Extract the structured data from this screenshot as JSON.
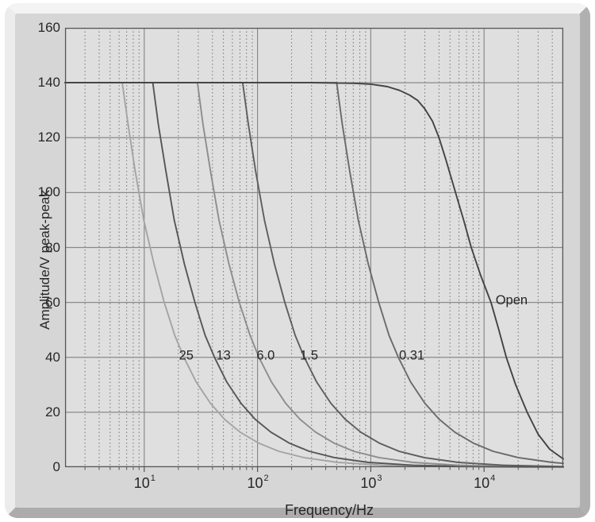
{
  "figure": {
    "panel_color": "#d6d6d6",
    "plot_background": "#dfdfdf",
    "axis_color": "#555555",
    "grid_major_color": "#8a8a8a",
    "grid_minor_color": "#757575",
    "text_color": "#262626"
  },
  "chart_data": {
    "type": "line",
    "title": "",
    "xlabel": "Frequency/Hz",
    "ylabel": "Amplitude/V peak-peak",
    "x_scale": "log",
    "xlim": [
      2,
      50000
    ],
    "ylim": [
      0,
      160
    ],
    "grid": "on: solid gray major lines, dotted dark minor log lines",
    "legend_position": "none (curves labeled inline)",
    "x_major_ticks": [
      10,
      100,
      1000,
      10000
    ],
    "x_tick_labels": [
      "10^1",
      "10^2",
      "10^3",
      "10^4"
    ],
    "x_minor_gridlines": [
      3,
      4,
      5,
      6,
      7,
      8,
      9,
      20,
      30,
      40,
      50,
      60,
      70,
      80,
      90,
      200,
      300,
      400,
      500,
      600,
      700,
      800,
      900,
      2000,
      3000,
      4000,
      5000,
      6000,
      7000,
      8000,
      9000,
      20000,
      30000,
      40000
    ],
    "y_ticks": [
      0,
      20,
      40,
      60,
      80,
      100,
      120,
      140,
      160
    ],
    "series": [
      {
        "name": "25",
        "label": "25",
        "color": "#a4a4a4",
        "label_at": {
          "f": 23.5,
          "v": 41
        },
        "points": [
          [
            2,
            140
          ],
          [
            6.4,
            140
          ],
          [
            7.2,
            125
          ],
          [
            8.3,
            108
          ],
          [
            9.9,
            90
          ],
          [
            12.2,
            74
          ],
          [
            15,
            60
          ],
          [
            18.6,
            48
          ],
          [
            22.4,
            40
          ],
          [
            28.8,
            31
          ],
          [
            38.4,
            23.3
          ],
          [
            51,
            17.5
          ],
          [
            70,
            12.8
          ],
          [
            102,
            8.8
          ],
          [
            154,
            5.8
          ],
          [
            256,
            3.5
          ],
          [
            512,
            1.75
          ],
          [
            1280,
            0.7
          ],
          [
            3840,
            0.25
          ],
          [
            12800,
            0.08
          ],
          [
            50000,
            0.02
          ]
        ]
      },
      {
        "name": "13",
        "label": "13",
        "color": "#565656",
        "label_at": {
          "f": 50,
          "v": 41
        },
        "points": [
          [
            2,
            140
          ],
          [
            11.9,
            140
          ],
          [
            13.3,
            125
          ],
          [
            15.5,
            108
          ],
          [
            18.4,
            90
          ],
          [
            22.6,
            74
          ],
          [
            28,
            60
          ],
          [
            34.5,
            48
          ],
          [
            41.7,
            40
          ],
          [
            53.6,
            31
          ],
          [
            71.4,
            23.3
          ],
          [
            95,
            17.5
          ],
          [
            131,
            12.8
          ],
          [
            190,
            8.8
          ],
          [
            286,
            5.8
          ],
          [
            476,
            3.5
          ],
          [
            952,
            1.75
          ],
          [
            2380,
            0.7
          ],
          [
            7140,
            0.25
          ],
          [
            23800,
            0.08
          ],
          [
            50000,
            0.03
          ]
        ]
      },
      {
        "name": "6.0",
        "label": "6.0",
        "color": "#8d8d8d",
        "label_at": {
          "f": 118,
          "v": 41
        },
        "points": [
          [
            2,
            140
          ],
          [
            29.5,
            140
          ],
          [
            33,
            125
          ],
          [
            38.4,
            108
          ],
          [
            45.7,
            90
          ],
          [
            56,
            74
          ],
          [
            69,
            60
          ],
          [
            86,
            48
          ],
          [
            103,
            40
          ],
          [
            133,
            31
          ],
          [
            177,
            23.3
          ],
          [
            236,
            17.5
          ],
          [
            325,
            12.8
          ],
          [
            472,
            8.8
          ],
          [
            708,
            5.8
          ],
          [
            1180,
            3.5
          ],
          [
            2360,
            1.75
          ],
          [
            5900,
            0.7
          ],
          [
            17700,
            0.25
          ],
          [
            50000,
            0.08
          ]
        ]
      },
      {
        "name": "1.5",
        "label": "1.5",
        "color": "#5e5e5e",
        "label_at": {
          "f": 285,
          "v": 41
        },
        "points": [
          [
            2,
            140
          ],
          [
            74,
            140
          ],
          [
            83,
            125
          ],
          [
            96,
            108
          ],
          [
            115,
            90
          ],
          [
            141,
            74
          ],
          [
            174,
            60
          ],
          [
            215,
            48
          ],
          [
            259,
            40
          ],
          [
            333,
            31
          ],
          [
            444,
            23.3
          ],
          [
            592,
            17.5
          ],
          [
            814,
            12.8
          ],
          [
            1184,
            8.8
          ],
          [
            1776,
            5.8
          ],
          [
            2960,
            3.5
          ],
          [
            5920,
            1.75
          ],
          [
            14800,
            0.7
          ],
          [
            44400,
            0.25
          ],
          [
            50000,
            0.21
          ]
        ]
      },
      {
        "name": "0.31",
        "label": "0.31",
        "color": "#6a6a6a",
        "label_at": {
          "f": 2300,
          "v": 41
        },
        "points": [
          [
            2,
            140
          ],
          [
            500,
            140
          ],
          [
            560,
            125
          ],
          [
            650,
            108
          ],
          [
            775,
            90
          ],
          [
            950,
            74
          ],
          [
            1175,
            60
          ],
          [
            1450,
            48
          ],
          [
            1750,
            40
          ],
          [
            2250,
            31
          ],
          [
            3000,
            23.3
          ],
          [
            4000,
            17.5
          ],
          [
            5500,
            12.8
          ],
          [
            8000,
            8.8
          ],
          [
            12000,
            5.8
          ],
          [
            20000,
            3.5
          ],
          [
            40000,
            1.75
          ],
          [
            50000,
            1.4
          ]
        ]
      },
      {
        "name": "Open",
        "label": "Open",
        "color": "#434343",
        "label_at": {
          "f": 17500,
          "v": 61
        },
        "points": [
          [
            2,
            140
          ],
          [
            300,
            140
          ],
          [
            700,
            139.8
          ],
          [
            1000,
            139.5
          ],
          [
            1400,
            138.6
          ],
          [
            1800,
            137.2
          ],
          [
            2200,
            135.5
          ],
          [
            2600,
            133.5
          ],
          [
            3000,
            130.5
          ],
          [
            3500,
            126
          ],
          [
            4000,
            120
          ],
          [
            4600,
            112
          ],
          [
            5600,
            100
          ],
          [
            6600,
            90
          ],
          [
            7700,
            80
          ],
          [
            9300,
            70
          ],
          [
            11500,
            60
          ],
          [
            13500,
            50
          ],
          [
            15700,
            40
          ],
          [
            19000,
            30
          ],
          [
            24000,
            20
          ],
          [
            30000,
            12
          ],
          [
            38000,
            6.5
          ],
          [
            50000,
            3
          ]
        ]
      }
    ]
  }
}
